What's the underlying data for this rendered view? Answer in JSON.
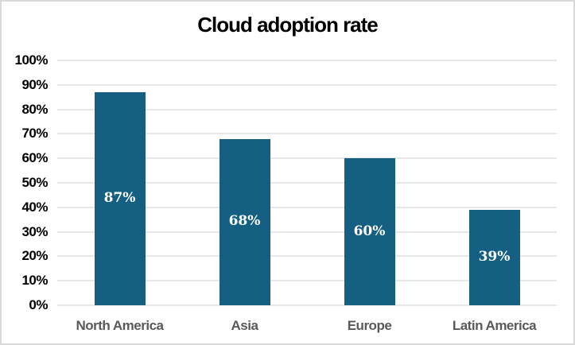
{
  "chart_data": {
    "type": "bar",
    "title": "Cloud adoption rate",
    "categories": [
      "North America",
      "Asia",
      "Europe",
      "Latin America"
    ],
    "values": [
      87,
      68,
      60,
      39
    ],
    "data_labels": [
      "87%",
      "68%",
      "60%",
      "39%"
    ],
    "xlabel": "",
    "ylabel": "",
    "ylim": [
      0,
      100
    ],
    "y_tick_step": 10,
    "y_tick_labels": [
      "0%",
      "10%",
      "20%",
      "30%",
      "40%",
      "50%",
      "60%",
      "70%",
      "80%",
      "90%",
      "100%"
    ],
    "grid": true,
    "legend": "none",
    "colors": {
      "bar": "#156082",
      "gridline": "#E7E7E7",
      "title_text": "#000000",
      "y_tick_text": "#000000",
      "x_tick_text": "#595959",
      "data_label_text": "#FFFFFF",
      "chart_border": "#D9D9D9",
      "background": "#FFFFFF"
    }
  }
}
